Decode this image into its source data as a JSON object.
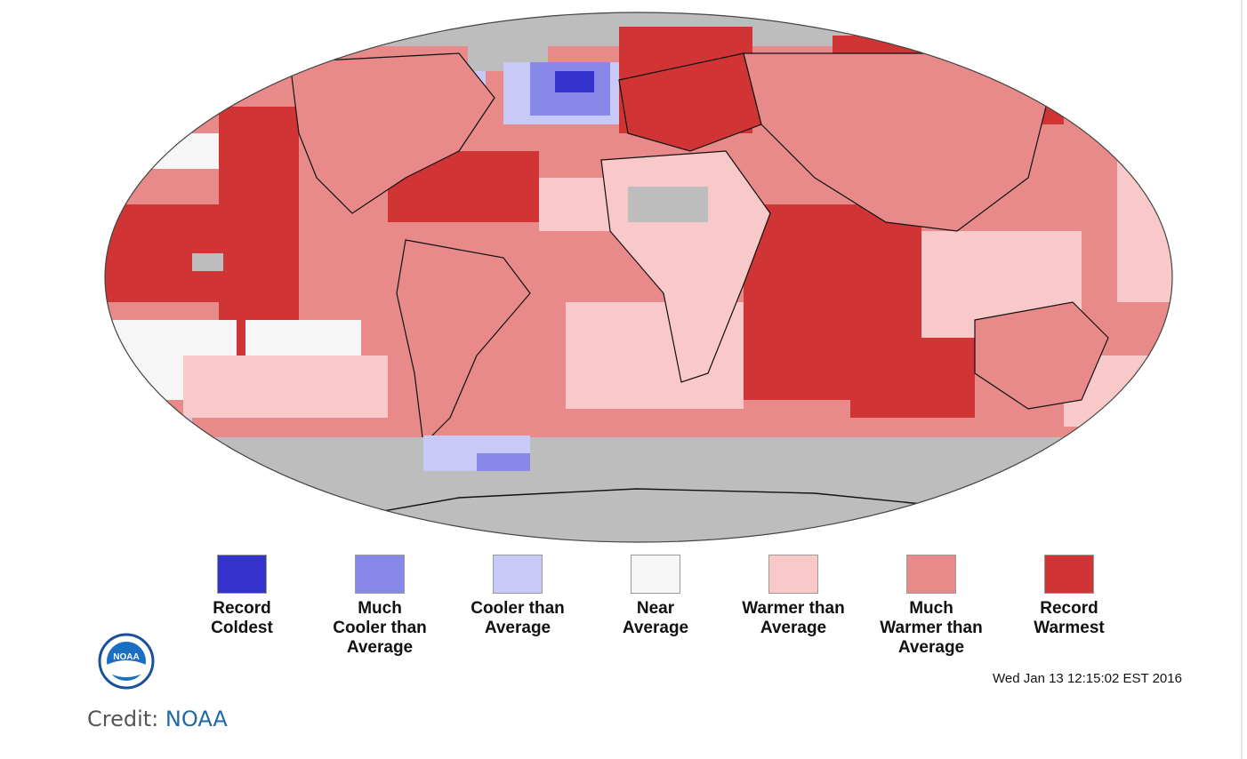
{
  "colors": {
    "record_coldest": "#3333cc",
    "much_cooler": "#8888e8",
    "cooler": "#c9c9f8",
    "near": "#f6f6f6",
    "warmer": "#f9c8c8",
    "much_warmer": "#e88a8a",
    "record_warmest": "#d03434",
    "no_data": "#bdbdbd"
  },
  "legend": [
    {
      "label": "Record\nColdest",
      "color_key": "record_coldest"
    },
    {
      "label": "Much\nCooler than\nAverage",
      "color_key": "much_cooler"
    },
    {
      "label": "Cooler than\nAverage",
      "color_key": "cooler"
    },
    {
      "label": "Near\nAverage",
      "color_key": "near"
    },
    {
      "label": "Warmer than\nAverage",
      "color_key": "warmer"
    },
    {
      "label": "Much\nWarmer than\nAverage",
      "color_key": "much_warmer"
    },
    {
      "label": "Record\nWarmest",
      "color_key": "record_warmest"
    }
  ],
  "timestamp": "Wed Jan 13 12:15:02 EST 2016",
  "logo_text": "NOAA",
  "credit": {
    "prefix": "Credit: ",
    "link": "NOAA"
  }
}
